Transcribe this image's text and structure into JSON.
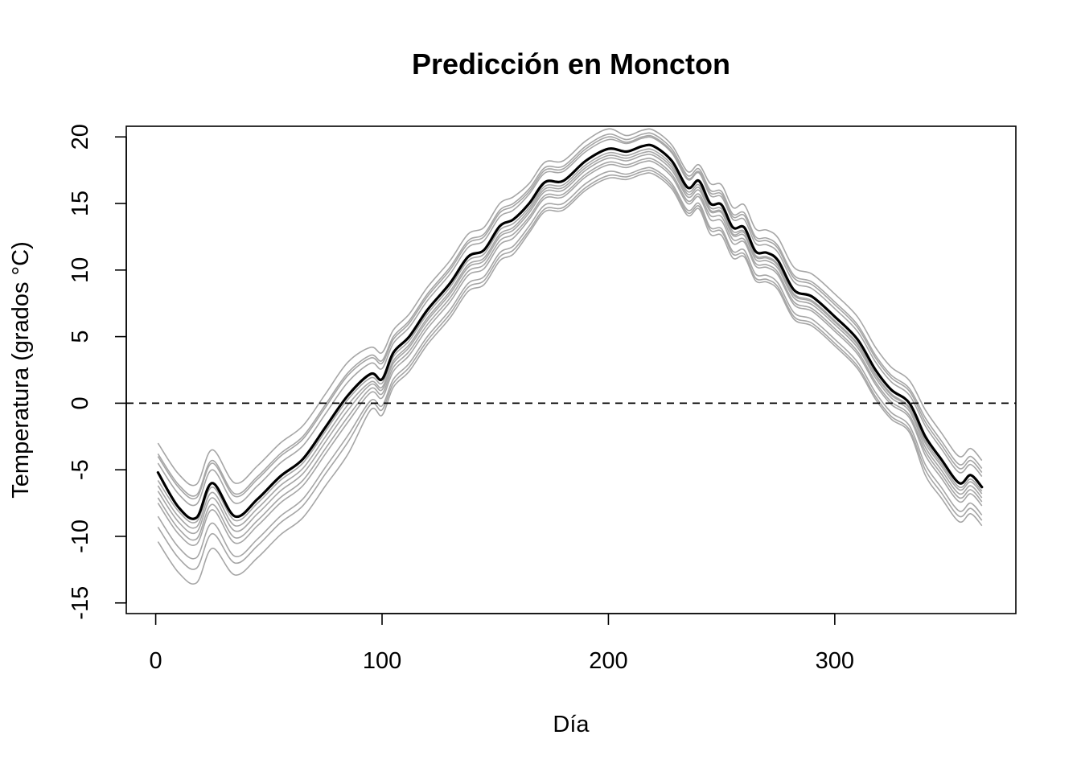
{
  "chart_data": {
    "type": "line",
    "title": "Predicción en Moncton",
    "xlabel": "Día",
    "ylabel": "Temperatura (grados °C)",
    "xlim": [
      -13,
      380
    ],
    "ylim": [
      -15.8,
      20.8
    ],
    "xticks": [
      0,
      100,
      200,
      300
    ],
    "yticks": [
      -15,
      -10,
      -5,
      0,
      5,
      10,
      15,
      20
    ],
    "grid": false,
    "legend": "none",
    "reference_line": {
      "y": 0,
      "style": "dashed",
      "color": "#000000"
    },
    "x": [
      1,
      10,
      18,
      25,
      35,
      45,
      55,
      65,
      75,
      85,
      95,
      100,
      105,
      112,
      120,
      130,
      138,
      145,
      152,
      158,
      165,
      172,
      180,
      190,
      200,
      208,
      215,
      220,
      228,
      235,
      240,
      245,
      250,
      255,
      260,
      265,
      270,
      275,
      282,
      290,
      300,
      310,
      318,
      325,
      333,
      340,
      347,
      355,
      360,
      365
    ],
    "series": [
      {
        "role": "prediction",
        "color": "#000000",
        "values": [
          -5.2,
          -7.8,
          -8.6,
          -6.0,
          -8.5,
          -7.2,
          -5.5,
          -4.2,
          -1.8,
          0.6,
          2.2,
          1.8,
          3.8,
          5.0,
          7.0,
          9.0,
          11.0,
          11.5,
          13.3,
          13.8,
          15.0,
          16.6,
          16.7,
          18.2,
          19.1,
          18.9,
          19.3,
          19.3,
          18.2,
          16.2,
          16.7,
          15.0,
          14.9,
          13.2,
          13.2,
          11.4,
          11.3,
          10.7,
          8.5,
          8.0,
          6.5,
          4.8,
          2.5,
          1.0,
          0.0,
          -2.5,
          -4.2,
          -6.0,
          -5.4,
          -6.3
        ]
      },
      {
        "role": "simulations",
        "color": "#a6a6a6",
        "values": [
          [
            -3.0,
            -5.3,
            -6.1,
            -3.5,
            -6.0,
            -4.7,
            -3.0,
            -1.7,
            0.7,
            3.1,
            4.2,
            3.8,
            5.5,
            6.7,
            8.7,
            10.7,
            12.7,
            13.2,
            15.0,
            15.5,
            16.5,
            18.1,
            18.2,
            19.7,
            20.6,
            20.1,
            20.5,
            20.5,
            19.4,
            17.4,
            17.9,
            16.5,
            16.4,
            14.7,
            14.9,
            13.1,
            13.0,
            12.4,
            10.2,
            9.7,
            8.2,
            6.5,
            4.2,
            2.7,
            1.7,
            -0.5,
            -2.2,
            -4.0,
            -3.4,
            -4.3
          ],
          [
            -3.8,
            -6.1,
            -6.9,
            -4.3,
            -6.8,
            -5.5,
            -3.8,
            -2.5,
            -0.1,
            2.3,
            3.6,
            3.2,
            5.0,
            6.2,
            8.2,
            10.2,
            12.2,
            12.7,
            14.5,
            15.0,
            16.1,
            17.7,
            17.8,
            19.3,
            20.2,
            19.8,
            20.2,
            20.2,
            19.1,
            17.1,
            17.6,
            16.0,
            15.9,
            14.2,
            14.3,
            12.5,
            12.4,
            11.8,
            9.6,
            9.1,
            7.6,
            5.9,
            3.6,
            2.1,
            1.1,
            -1.1,
            -2.8,
            -4.6,
            -4.0,
            -4.9
          ],
          [
            -4.5,
            -6.8,
            -7.6,
            -5.0,
            -7.5,
            -6.2,
            -4.5,
            -3.2,
            -0.8,
            1.6,
            3.0,
            2.6,
            4.5,
            5.7,
            7.7,
            9.7,
            11.7,
            12.2,
            14.0,
            14.5,
            15.7,
            17.3,
            17.4,
            18.9,
            19.8,
            19.5,
            19.9,
            19.9,
            18.8,
            16.8,
            17.3,
            15.6,
            15.5,
            13.8,
            13.8,
            12.0,
            11.9,
            11.3,
            9.1,
            8.6,
            7.1,
            5.4,
            3.1,
            1.6,
            0.6,
            -1.7,
            -3.4,
            -5.2,
            -4.6,
            -5.5
          ],
          [
            -5.8,
            -8.1,
            -8.9,
            -6.3,
            -8.8,
            -7.5,
            -5.8,
            -4.5,
            -2.1,
            0.3,
            1.9,
            1.5,
            3.5,
            4.7,
            6.7,
            8.7,
            10.7,
            11.2,
            13.0,
            13.5,
            14.7,
            16.3,
            16.4,
            17.9,
            18.8,
            18.6,
            19.0,
            19.0,
            17.9,
            15.9,
            16.4,
            14.7,
            14.6,
            12.9,
            12.9,
            11.1,
            11.0,
            10.4,
            8.2,
            7.7,
            6.2,
            4.5,
            2.2,
            0.7,
            -0.3,
            -2.8,
            -4.5,
            -6.3,
            -5.7,
            -6.6
          ],
          [
            -6.6,
            -8.9,
            -9.7,
            -7.1,
            -9.6,
            -8.3,
            -6.6,
            -5.3,
            -2.9,
            -0.5,
            1.4,
            1.0,
            3.0,
            4.2,
            6.2,
            8.2,
            10.2,
            10.7,
            12.5,
            13.0,
            14.3,
            15.9,
            16.0,
            17.5,
            18.4,
            18.2,
            18.6,
            18.6,
            17.5,
            15.5,
            16.0,
            14.4,
            14.3,
            12.6,
            12.6,
            10.8,
            10.7,
            10.1,
            7.9,
            7.4,
            5.9,
            4.2,
            1.9,
            0.4,
            -0.6,
            -3.3,
            -5.0,
            -6.8,
            -6.2,
            -7.1
          ],
          [
            -7.5,
            -9.8,
            -10.6,
            -8.0,
            -10.5,
            -9.2,
            -7.5,
            -6.2,
            -3.8,
            -1.4,
            0.8,
            0.4,
            2.4,
            3.6,
            5.6,
            7.6,
            9.6,
            10.1,
            11.9,
            12.4,
            13.8,
            15.4,
            15.5,
            17.0,
            17.9,
            17.7,
            18.1,
            18.1,
            17.0,
            15.0,
            15.5,
            13.8,
            13.7,
            12.0,
            12.1,
            10.3,
            10.2,
            9.6,
            7.4,
            6.9,
            5.4,
            3.7,
            1.4,
            -0.1,
            -1.1,
            -3.9,
            -5.6,
            -7.4,
            -6.8,
            -7.7
          ],
          [
            -8.5,
            -10.8,
            -11.6,
            -9.0,
            -11.5,
            -10.2,
            -8.5,
            -7.2,
            -4.8,
            -2.4,
            0.2,
            -0.2,
            1.8,
            3.0,
            5.0,
            7.0,
            9.0,
            9.5,
            11.3,
            11.8,
            13.3,
            14.9,
            15.0,
            16.5,
            17.4,
            17.2,
            17.6,
            17.6,
            16.5,
            14.5,
            15.0,
            13.2,
            13.1,
            11.4,
            11.5,
            9.7,
            9.6,
            9.0,
            6.8,
            6.3,
            4.8,
            3.1,
            0.8,
            -0.7,
            -1.7,
            -4.6,
            -6.3,
            -8.1,
            -7.5,
            -8.4
          ],
          [
            -10.4,
            -12.7,
            -13.5,
            -10.9,
            -12.9,
            -11.6,
            -9.9,
            -8.6,
            -6.2,
            -3.8,
            -0.5,
            -0.9,
            1.2,
            2.4,
            4.4,
            6.4,
            8.4,
            8.9,
            10.7,
            11.2,
            12.8,
            14.4,
            14.5,
            16.0,
            16.9,
            16.8,
            17.2,
            17.2,
            16.1,
            14.1,
            14.6,
            12.7,
            12.6,
            10.9,
            11.0,
            9.2,
            9.1,
            8.5,
            6.3,
            5.8,
            4.3,
            2.6,
            0.3,
            -1.2,
            -2.2,
            -5.4,
            -7.1,
            -8.9,
            -8.3,
            -9.2
          ],
          [
            -4.0,
            -6.3,
            -7.1,
            -4.5,
            -7.0,
            -5.7,
            -4.0,
            -2.7,
            -0.3,
            2.1,
            3.4,
            3.0,
            4.8,
            6.0,
            8.0,
            10.0,
            12.0,
            12.5,
            14.3,
            14.8,
            15.9,
            17.5,
            17.6,
            19.1,
            20.0,
            19.6,
            20.0,
            20.0,
            18.9,
            16.9,
            17.4,
            15.8,
            15.7,
            14.0,
            14.1,
            12.3,
            12.2,
            11.6,
            9.4,
            8.9,
            7.4,
            5.7,
            3.4,
            1.9,
            0.9,
            -1.4,
            -3.1,
            -4.9,
            -4.3,
            -5.2
          ],
          [
            -6.2,
            -8.5,
            -9.3,
            -6.7,
            -9.2,
            -7.9,
            -6.2,
            -4.9,
            -2.5,
            -0.1,
            1.6,
            1.2,
            3.2,
            4.4,
            6.4,
            8.4,
            10.4,
            10.9,
            12.7,
            13.2,
            14.5,
            16.1,
            16.2,
            17.7,
            18.6,
            18.4,
            18.8,
            18.8,
            17.7,
            15.7,
            16.2,
            14.5,
            14.4,
            12.7,
            12.8,
            11.0,
            10.9,
            10.3,
            8.1,
            7.6,
            6.1,
            4.4,
            2.1,
            0.6,
            -0.4,
            -3.0,
            -4.7,
            -6.5,
            -5.9,
            -6.8
          ],
          [
            -7.1,
            -9.4,
            -10.2,
            -7.6,
            -10.1,
            -8.8,
            -7.1,
            -5.8,
            -3.4,
            -1.0,
            1.1,
            0.7,
            2.7,
            3.9,
            5.9,
            7.9,
            9.9,
            10.4,
            12.2,
            12.7,
            14.0,
            15.6,
            15.7,
            17.2,
            18.1,
            17.9,
            18.3,
            18.3,
            17.2,
            15.2,
            15.7,
            14.1,
            14.0,
            12.3,
            12.3,
            10.5,
            10.4,
            9.8,
            7.6,
            7.1,
            5.6,
            3.9,
            1.6,
            0.1,
            -0.9,
            -3.6,
            -5.3,
            -7.1,
            -6.5,
            -7.4
          ],
          [
            -9.3,
            -11.6,
            -12.4,
            -9.8,
            -12.0,
            -10.7,
            -9.0,
            -7.7,
            -5.3,
            -2.9,
            -0.1,
            -0.5,
            1.5,
            2.7,
            4.7,
            6.7,
            8.7,
            9.2,
            11.0,
            11.5,
            13.0,
            14.6,
            14.7,
            16.2,
            17.1,
            17.0,
            17.4,
            17.4,
            16.3,
            14.3,
            14.8,
            13.0,
            12.9,
            11.2,
            11.2,
            9.4,
            9.3,
            8.7,
            6.5,
            6.0,
            4.5,
            2.8,
            0.5,
            -1.0,
            -2.0,
            -5.0,
            -6.7,
            -8.5,
            -7.9,
            -8.8
          ]
        ]
      }
    ]
  }
}
